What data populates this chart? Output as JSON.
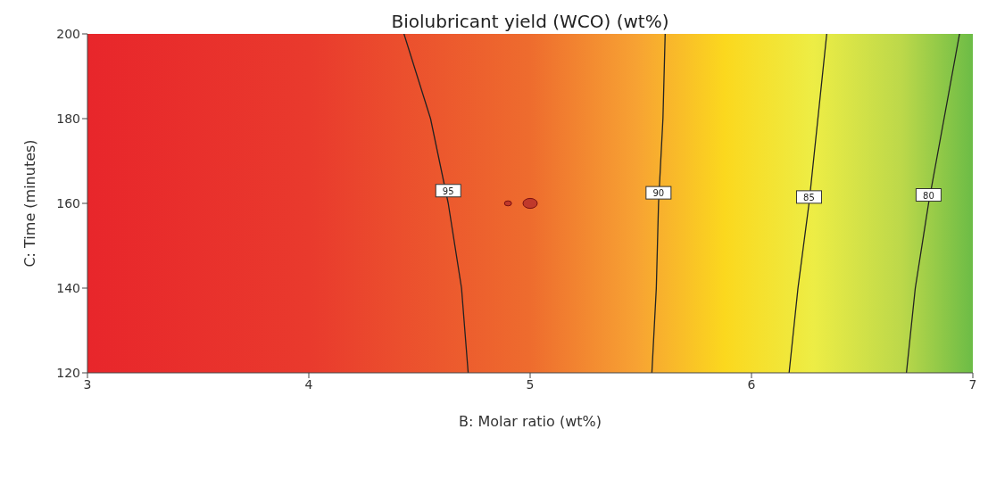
{
  "chart_data": {
    "type": "line",
    "title": "Biolubricant yield (WCO) (wt%)",
    "xlabel": "B: Molar ratio (wt%)",
    "ylabel": "C: Time (minutes)",
    "xlim": [
      3,
      7
    ],
    "xticks": [
      3,
      4,
      5,
      6,
      7
    ],
    "ylim": [
      120,
      200
    ],
    "yticks": [
      120,
      140,
      160,
      180,
      200
    ],
    "grid": false,
    "legend": false,
    "series": [
      {
        "color": "#222222",
        "x": [
          4.43,
          4.55,
          4.63,
          4.69,
          4.72
        ],
        "values": [
          200,
          180,
          160,
          140,
          120
        ]
      },
      {
        "color": "#222222",
        "x": [
          5.61,
          5.6,
          5.58,
          5.57,
          5.55
        ],
        "values": [
          200,
          180,
          160,
          140,
          120
        ]
      },
      {
        "color": "#222222",
        "x": [
          6.34,
          6.3,
          6.26,
          6.21,
          6.17
        ],
        "values": [
          200,
          180,
          160,
          140,
          120
        ]
      },
      {
        "color": "#222222",
        "x": [
          6.94,
          6.87,
          6.8,
          6.74,
          6.7
        ],
        "values": [
          200,
          180,
          160,
          140,
          120
        ]
      },
      {
        "type": "bubble",
        "color": "#c0392b",
        "x": [
          4.9,
          5.0
        ],
        "values": [
          160,
          160
        ],
        "sizes": [
          0.25,
          1
        ]
      }
    ],
    "annotations": [
      {
        "text": "95",
        "x": 4.63,
        "y": 163
      },
      {
        "text": "90",
        "x": 5.58,
        "y": 162.5
      },
      {
        "text": "85",
        "x": 6.26,
        "y": 161.5
      },
      {
        "text": "80",
        "x": 6.8,
        "y": 162
      }
    ]
  }
}
